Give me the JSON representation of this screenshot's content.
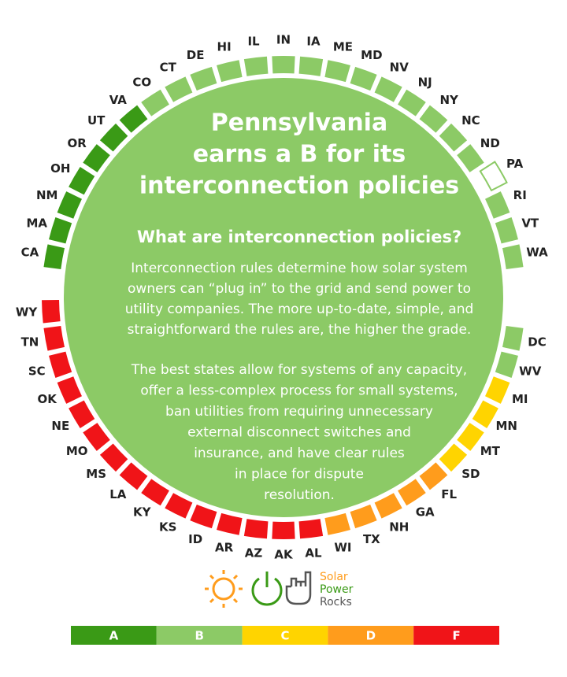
{
  "ring": {
    "states": [
      {
        "label": "IN",
        "grade": "B"
      },
      {
        "label": "IA",
        "grade": "B"
      },
      {
        "label": "ME",
        "grade": "B"
      },
      {
        "label": "MD",
        "grade": "B"
      },
      {
        "label": "NV",
        "grade": "B"
      },
      {
        "label": "NJ",
        "grade": "B"
      },
      {
        "label": "NY",
        "grade": "B"
      },
      {
        "label": "NC",
        "grade": "B"
      },
      {
        "label": "ND",
        "grade": "B"
      },
      {
        "label": "PA",
        "grade": "B",
        "highlight": true
      },
      {
        "label": "RI",
        "grade": "B"
      },
      {
        "label": "VT",
        "grade": "B"
      },
      {
        "label": "WA",
        "grade": "B"
      },
      {
        "label": "DC",
        "grade": "B"
      },
      {
        "label": "WV",
        "grade": "B"
      },
      {
        "label": "MI",
        "grade": "C"
      },
      {
        "label": "MN",
        "grade": "C"
      },
      {
        "label": "MT",
        "grade": "C"
      },
      {
        "label": "SD",
        "grade": "C"
      },
      {
        "label": "FL",
        "grade": "D"
      },
      {
        "label": "GA",
        "grade": "D"
      },
      {
        "label": "NH",
        "grade": "D"
      },
      {
        "label": "TX",
        "grade": "D"
      },
      {
        "label": "WI",
        "grade": "D"
      },
      {
        "label": "AL",
        "grade": "F"
      },
      {
        "label": "AK",
        "grade": "F"
      },
      {
        "label": "AZ",
        "grade": "F"
      },
      {
        "label": "AR",
        "grade": "F"
      },
      {
        "label": "ID",
        "grade": "F"
      },
      {
        "label": "KS",
        "grade": "F"
      },
      {
        "label": "KY",
        "grade": "F"
      },
      {
        "label": "LA",
        "grade": "F"
      },
      {
        "label": "MS",
        "grade": "F"
      },
      {
        "label": "MO",
        "grade": "F"
      },
      {
        "label": "NE",
        "grade": "F"
      },
      {
        "label": "OK",
        "grade": "F"
      },
      {
        "label": "SC",
        "grade": "F"
      },
      {
        "label": "TN",
        "grade": "F"
      },
      {
        "label": "WY",
        "grade": "F"
      },
      {
        "label": "CA",
        "grade": "A"
      },
      {
        "label": "MA",
        "grade": "A"
      },
      {
        "label": "NM",
        "grade": "A"
      },
      {
        "label": "OH",
        "grade": "A"
      },
      {
        "label": "OR",
        "grade": "A"
      },
      {
        "label": "UT",
        "grade": "A"
      },
      {
        "label": "VA",
        "grade": "A"
      },
      {
        "label": "CO",
        "grade": "B"
      },
      {
        "label": "CT",
        "grade": "B"
      },
      {
        "label": "DE",
        "grade": "B"
      },
      {
        "label": "HI",
        "grade": "B"
      },
      {
        "label": "IL",
        "grade": "B"
      }
    ]
  },
  "circle": {
    "title_lines": [
      "Pennsylvania",
      "earns a B for its",
      "interconnection policies"
    ],
    "subtitle": "What are interconnection policies?",
    "paragraphs": [
      [
        "Interconnection rules determine how solar system",
        "owners can “plug in” to the grid and send power to",
        "utility companies. The more up-to-date, simple, and",
        "straightforward the rules are, the higher the grade."
      ],
      [
        "The best states allow for systems of any capacity,",
        "offer a less-complex process for small systems,",
        "ban utilities from requiring unnecessary",
        "external disconnect switches and",
        "insurance, and have clear rules",
        "in place for dispute",
        "resolution."
      ]
    ]
  },
  "logo": {
    "lines": [
      "Solar",
      "Power",
      "Rocks"
    ]
  },
  "legend": [
    {
      "grade": "A",
      "color": "#3a9a16"
    },
    {
      "grade": "B",
      "color": "#8cca66"
    },
    {
      "grade": "C",
      "color": "#ffd400"
    },
    {
      "grade": "D",
      "color": "#ff9c1c"
    },
    {
      "grade": "F",
      "color": "#f01418"
    }
  ]
}
